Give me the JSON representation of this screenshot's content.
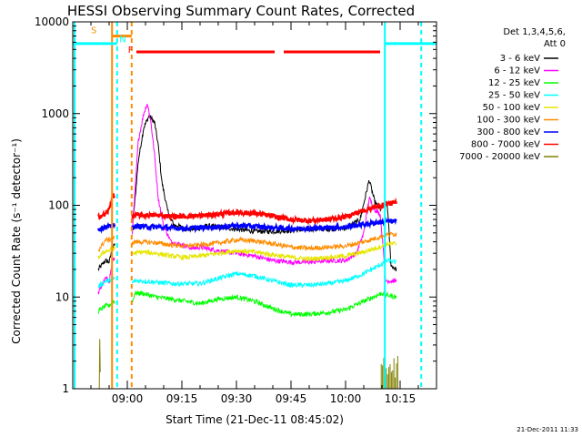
{
  "chart_data": {
    "type": "line",
    "title": "HESSI Observing Summary Count Rates, Corrected",
    "xlabel": "Start Time (21-Dec-11 08:45:02)",
    "ylabel": "Corrected Count Rate (s⁻¹ detector⁻¹)",
    "x_unit": "minutes",
    "xlim": [
      525,
      625
    ],
    "ylim": [
      1,
      10000
    ],
    "yscale": "log",
    "xticks": [
      {
        "label": "09:00",
        "value": 540
      },
      {
        "label": "09:15",
        "value": 555
      },
      {
        "label": "09:30",
        "value": 570
      },
      {
        "label": "09:45",
        "value": 585
      },
      {
        "label": "10:00",
        "value": 600
      },
      {
        "label": "10:15",
        "value": 615
      }
    ],
    "yticks": [
      {
        "label": "1",
        "value": 1
      },
      {
        "label": "10",
        "value": 10
      },
      {
        "label": "100",
        "value": 100
      },
      {
        "label": "1000",
        "value": 1000
      },
      {
        "label": "10000",
        "value": 10000
      }
    ],
    "legend_title": [
      "Det 1,3,4,5,6,",
      "Att 0"
    ],
    "legend_position": "right",
    "series": [
      {
        "name": "3 - 6 keV",
        "color": "#000000",
        "points": [
          [
            532,
            20
          ],
          [
            534,
            25
          ],
          [
            535,
            24
          ],
          [
            536,
            35
          ],
          [
            541.2,
            60
          ],
          [
            542,
            100
          ],
          [
            543,
            300
          ],
          [
            544.5,
            700
          ],
          [
            546,
            950
          ],
          [
            547.5,
            800
          ],
          [
            548.5,
            450
          ],
          [
            549.5,
            180
          ],
          [
            551,
            90
          ],
          [
            552,
            70
          ],
          [
            553,
            60
          ],
          [
            554,
            60
          ],
          [
            556,
            55
          ],
          [
            558,
            55
          ],
          [
            560,
            57
          ],
          [
            562,
            60
          ],
          [
            565,
            58
          ],
          [
            570,
            55
          ],
          [
            575,
            52
          ],
          [
            580,
            52
          ],
          [
            585,
            53
          ],
          [
            590,
            55
          ],
          [
            595,
            55
          ],
          [
            600,
            56
          ],
          [
            604,
            70
          ],
          [
            606.5,
            190
          ],
          [
            608,
            110
          ],
          [
            609.5,
            90
          ],
          [
            610.5,
            100
          ],
          [
            611.5,
            100
          ],
          [
            612.5,
            22
          ],
          [
            614,
            20
          ]
        ]
      },
      {
        "name": "6 - 12 keV",
        "color": "#ff00ff",
        "points": [
          [
            532,
            11
          ],
          [
            534,
            16
          ],
          [
            535,
            15
          ],
          [
            536,
            25
          ],
          [
            541.2,
            40
          ],
          [
            542,
            120
          ],
          [
            543,
            500
          ],
          [
            544.5,
            1000
          ],
          [
            545.5,
            1300
          ],
          [
            546.5,
            800
          ],
          [
            547.5,
            350
          ],
          [
            548.5,
            120
          ],
          [
            550,
            60
          ],
          [
            552,
            40
          ],
          [
            554,
            38
          ],
          [
            556,
            36
          ],
          [
            558,
            34
          ],
          [
            560,
            35
          ],
          [
            565,
            32
          ],
          [
            570,
            30
          ],
          [
            575,
            28
          ],
          [
            580,
            25
          ],
          [
            585,
            24
          ],
          [
            590,
            24
          ],
          [
            595,
            25
          ],
          [
            600,
            25
          ],
          [
            603,
            30
          ],
          [
            605,
            50
          ],
          [
            606.5,
            120
          ],
          [
            608,
            90
          ],
          [
            609.5,
            80
          ],
          [
            610.5,
            30
          ],
          [
            611,
            15
          ],
          [
            614,
            15
          ]
        ]
      },
      {
        "name": "12 - 25 keV",
        "color": "#00ff00",
        "points": [
          [
            532,
            7
          ],
          [
            534,
            8
          ],
          [
            535,
            8
          ],
          [
            536,
            9
          ],
          [
            541.2,
            8
          ],
          [
            542,
            11
          ],
          [
            544,
            11
          ],
          [
            548,
            10
          ],
          [
            552,
            9.5
          ],
          [
            556,
            9
          ],
          [
            560,
            8.5
          ],
          [
            565,
            9.5
          ],
          [
            570,
            10
          ],
          [
            575,
            9
          ],
          [
            580,
            7.5
          ],
          [
            585,
            6.5
          ],
          [
            590,
            6.5
          ],
          [
            595,
            6.8
          ],
          [
            600,
            7.3
          ],
          [
            605,
            9
          ],
          [
            610,
            11
          ],
          [
            611.5,
            10.5
          ],
          [
            614,
            10
          ]
        ]
      },
      {
        "name": "25 - 50 keV",
        "color": "#00ffff",
        "points": [
          [
            532,
            13
          ],
          [
            534,
            15
          ],
          [
            535,
            15
          ],
          [
            536,
            16
          ],
          [
            541.2,
            14
          ],
          [
            542,
            15
          ],
          [
            544,
            15
          ],
          [
            548,
            14.5
          ],
          [
            552,
            14
          ],
          [
            556,
            14
          ],
          [
            560,
            14
          ],
          [
            565,
            16
          ],
          [
            570,
            18
          ],
          [
            575,
            17
          ],
          [
            580,
            15
          ],
          [
            585,
            13.5
          ],
          [
            590,
            13.5
          ],
          [
            595,
            14
          ],
          [
            600,
            15
          ],
          [
            605,
            18
          ],
          [
            610,
            23
          ],
          [
            611.5,
            25
          ],
          [
            614,
            24
          ]
        ]
      },
      {
        "name": "50 - 100 keV",
        "color": "#e6e600",
        "points": [
          [
            532,
            27
          ],
          [
            534,
            32
          ],
          [
            535,
            32
          ],
          [
            536,
            34
          ],
          [
            541.2,
            30
          ],
          [
            542,
            30
          ],
          [
            544,
            31
          ],
          [
            548,
            30
          ],
          [
            552,
            28
          ],
          [
            556,
            27
          ],
          [
            560,
            28
          ],
          [
            565,
            30
          ],
          [
            570,
            32
          ],
          [
            575,
            31
          ],
          [
            580,
            29
          ],
          [
            585,
            27
          ],
          [
            590,
            26
          ],
          [
            595,
            27
          ],
          [
            600,
            28
          ],
          [
            605,
            31
          ],
          [
            610,
            36
          ],
          [
            611.5,
            38
          ],
          [
            614,
            38
          ]
        ]
      },
      {
        "name": "100 - 300 keV",
        "color": "#ff8c00",
        "points": [
          [
            532,
            32
          ],
          [
            534,
            42
          ],
          [
            535,
            42
          ],
          [
            536,
            44
          ],
          [
            541.2,
            39
          ],
          [
            542,
            40
          ],
          [
            544,
            40
          ],
          [
            548,
            39
          ],
          [
            552,
            37
          ],
          [
            556,
            36
          ],
          [
            560,
            37
          ],
          [
            565,
            39
          ],
          [
            570,
            42
          ],
          [
            575,
            41
          ],
          [
            580,
            38
          ],
          [
            585,
            35
          ],
          [
            590,
            34
          ],
          [
            595,
            35
          ],
          [
            600,
            36
          ],
          [
            605,
            40
          ],
          [
            610,
            46
          ],
          [
            611.5,
            48
          ],
          [
            614,
            49
          ]
        ]
      },
      {
        "name": "300 - 800 keV",
        "color": "#0000ff",
        "points": [
          [
            532,
            55
          ],
          [
            534,
            58
          ],
          [
            535,
            58
          ],
          [
            536,
            60
          ],
          [
            541.2,
            58
          ],
          [
            542,
            59
          ],
          [
            544,
            59
          ],
          [
            548,
            58
          ],
          [
            552,
            57
          ],
          [
            556,
            56
          ],
          [
            560,
            57
          ],
          [
            565,
            58
          ],
          [
            570,
            60
          ],
          [
            575,
            59
          ],
          [
            580,
            57
          ],
          [
            585,
            56
          ],
          [
            590,
            56
          ],
          [
            595,
            57
          ],
          [
            600,
            58
          ],
          [
            605,
            62
          ],
          [
            610,
            66
          ],
          [
            611.5,
            67
          ],
          [
            614,
            67
          ]
        ]
      },
      {
        "name": "800 - 7000 keV",
        "color": "#ff0000",
        "points": [
          [
            532,
            75
          ],
          [
            534,
            80
          ],
          [
            535,
            90
          ],
          [
            536,
            130
          ],
          [
            541.2,
            75
          ],
          [
            542,
            78
          ],
          [
            544,
            78
          ],
          [
            548,
            78
          ],
          [
            552,
            76
          ],
          [
            556,
            76
          ],
          [
            560,
            77
          ],
          [
            565,
            80
          ],
          [
            570,
            84
          ],
          [
            575,
            82
          ],
          [
            580,
            76
          ],
          [
            585,
            70
          ],
          [
            590,
            68
          ],
          [
            595,
            70
          ],
          [
            600,
            75
          ],
          [
            605,
            88
          ],
          [
            610,
            100
          ],
          [
            611.5,
            105
          ],
          [
            614,
            106
          ]
        ]
      },
      {
        "name": "7000 - 20000 keV",
        "color": "#808000",
        "points": [
          [
            532.3,
            1
          ],
          [
            532.4,
            4
          ],
          [
            532.6,
            1
          ]
        ]
      }
    ],
    "overlays": [
      {
        "kind": "vline",
        "color": "#00ffff",
        "dash": false,
        "x": 525.5
      },
      {
        "kind": "vline",
        "color": "#00ffff",
        "dash": true,
        "x": 537.2
      },
      {
        "kind": "vline",
        "color": "#00ffff",
        "dash": false,
        "x": 610.8
      },
      {
        "kind": "vline",
        "color": "#00ffff",
        "dash": true,
        "x": 620.8
      },
      {
        "kind": "vline",
        "color": "#ff8c00",
        "dash": false,
        "x": 535.8
      },
      {
        "kind": "vline",
        "color": "#ff8c00",
        "dash": true,
        "x": 541.2
      },
      {
        "kind": "hseg",
        "color": "#00ffff",
        "y": 5800,
        "x0": 525,
        "x1": 537.2
      },
      {
        "kind": "hseg",
        "color": "#00ffff",
        "y": 5800,
        "x0": 610.8,
        "x1": 625
      },
      {
        "kind": "hseg",
        "color": "#ff8c00",
        "y": 7000,
        "x0": 535.8,
        "x1": 541.2
      },
      {
        "kind": "hseg",
        "color": "#ff0000",
        "y": 4700,
        "x0": 542.5,
        "x1": 580.5
      },
      {
        "kind": "hseg",
        "color": "#ff0000",
        "y": 4700,
        "x0": 583,
        "x1": 609.5
      }
    ],
    "flag_labels": [
      {
        "text": "S",
        "color": "#ff8c00",
        "x": 530,
        "y": 7500
      },
      {
        "text": "N",
        "color": "#00ffff",
        "x": 537.8,
        "y": 6000
      },
      {
        "text": "F",
        "color": "#ff0000",
        "x": 540.2,
        "y": 4600
      }
    ]
  },
  "footer_date": "21-Dec-2011 11:33"
}
